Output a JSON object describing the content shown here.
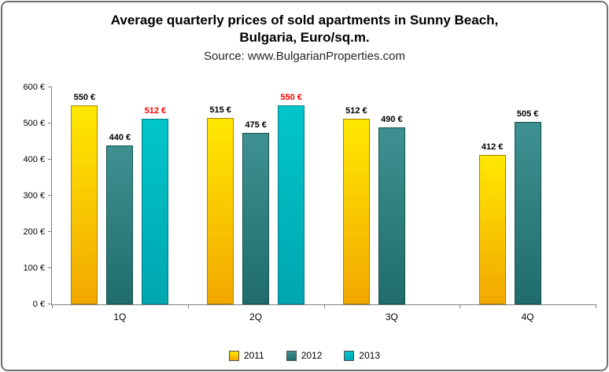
{
  "chart_data": {
    "type": "bar",
    "title": "Average quarterly prices of sold apartments in Sunny Beach, Bulgaria, Euro/sq.m.",
    "title_line1": "Average quarterly prices of sold apartments in Sunny Beach,",
    "title_line2": "Bulgaria, Euro/sq.m.",
    "source": "Source: www.BulgarianProperties.com",
    "categories": [
      "1Q",
      "2Q",
      "3Q",
      "4Q"
    ],
    "series": [
      {
        "name": "2011",
        "values": [
          550,
          515,
          512,
          412
        ],
        "color_top": "#ffe800",
        "color_bottom": "#f2a800",
        "border_color": "#a98200",
        "label_color": "#000000"
      },
      {
        "name": "2012",
        "values": [
          440,
          475,
          490,
          505
        ],
        "color_top": "#3f9191",
        "color_bottom": "#206c6c",
        "border_color": "#144f4f",
        "label_color": "#000000"
      },
      {
        "name": "2013",
        "values": [
          512,
          550,
          null,
          null
        ],
        "color_top": "#00c6ca",
        "color_bottom": "#00a6b0",
        "border_color": "#007d85",
        "label_color": "#ff0000"
      }
    ],
    "label_format": "{v} €",
    "yticks": [
      0,
      100,
      200,
      300,
      400,
      500,
      600
    ],
    "ylim": [
      0,
      600
    ],
    "xlabel": "",
    "ylabel": "",
    "grid": false,
    "legend_position": "bottom"
  }
}
